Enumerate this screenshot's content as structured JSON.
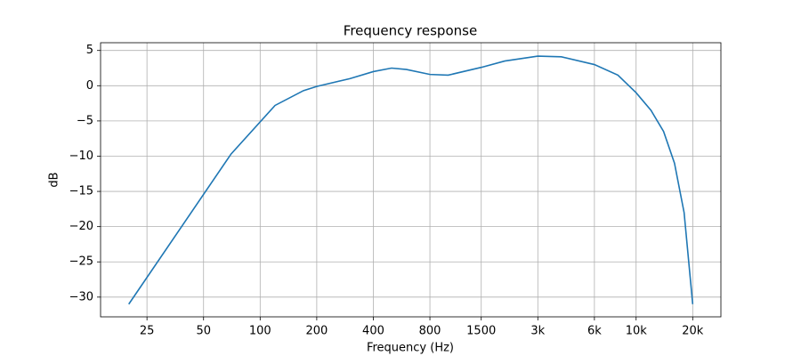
{
  "chart_data": {
    "type": "line",
    "title": "Frequency response",
    "xlabel": "Frequency (Hz)",
    "ylabel": "dB",
    "xscale": "log",
    "grid": true,
    "x": [
      20,
      70,
      120,
      170,
      200,
      300,
      400,
      500,
      600,
      800,
      1000,
      1500,
      2000,
      3000,
      4000,
      6000,
      8000,
      10000,
      12000,
      14000,
      16000,
      18000,
      20000
    ],
    "series": [
      {
        "color": "#1f77b4",
        "values": [
          -31,
          -9.7,
          -2.8,
          -0.7,
          -0.1,
          1.0,
          2.0,
          2.5,
          2.3,
          1.6,
          1.5,
          2.6,
          3.5,
          4.2,
          4.1,
          3.0,
          1.5,
          -1.0,
          -3.5,
          -6.5,
          -11,
          -18,
          -31
        ]
      }
    ],
    "xlim": [
      14.16,
      28250
    ],
    "ylim": [
      -32.8,
      6.1
    ],
    "xticks": [
      25,
      50,
      100,
      200,
      400,
      800,
      1500,
      {
        "value": 3000,
        "label": "3k"
      },
      {
        "value": 6000,
        "label": "6k"
      },
      {
        "value": 10000,
        "label": "10k"
      },
      {
        "value": 20000,
        "label": "20k"
      }
    ],
    "yticks": [
      5,
      0,
      {
        "value": -5,
        "label": "−5"
      },
      {
        "value": -10,
        "label": "−10"
      },
      {
        "value": -15,
        "label": "−15"
      },
      {
        "value": -20,
        "label": "−20"
      },
      {
        "value": -25,
        "label": "−25"
      },
      {
        "value": -30,
        "label": "−30"
      }
    ]
  }
}
